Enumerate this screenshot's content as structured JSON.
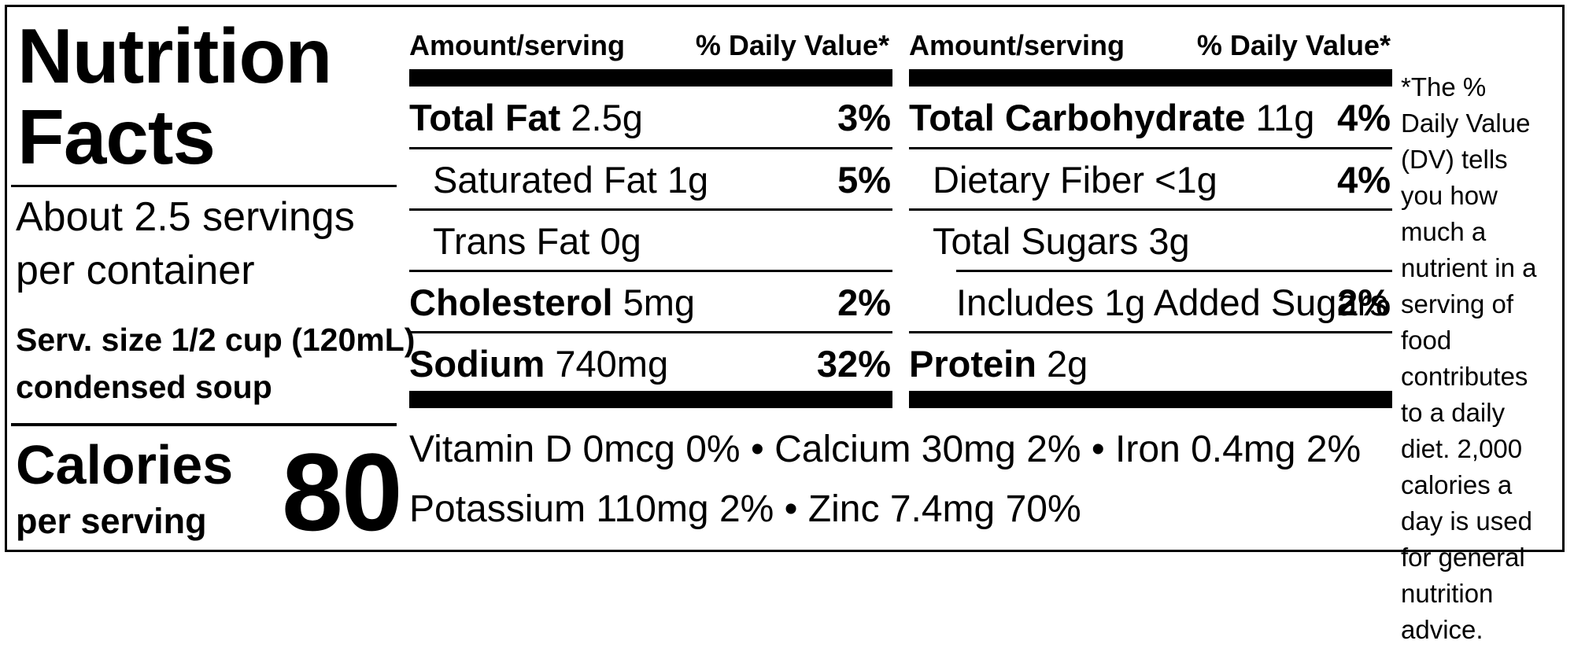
{
  "label": {
    "title_line1": "Nutrition",
    "title_line2": "Facts",
    "servings_line1": "About 2.5 servings",
    "servings_line2": "per container",
    "serving_size_line1": "Serv. size 1/2 cup (120mL)",
    "serving_size_line2": "condensed soup",
    "calories_label": "Calories",
    "calories_sub": "per serving",
    "calories_value": "80"
  },
  "headers": {
    "amount": "Amount/serving",
    "daily_value": "% Daily Value*"
  },
  "left_rows": [
    {
      "name": "Total Fat",
      "amount": "2.5g",
      "dv": "3%"
    },
    {
      "name": "Saturated Fat",
      "amount": "1g",
      "dv": "5%"
    },
    {
      "name": "Trans Fat",
      "amount": "0g",
      "dv": ""
    },
    {
      "name": "Cholesterol",
      "amount": "5mg",
      "dv": "2%"
    },
    {
      "name": "Sodium",
      "amount": "740mg",
      "dv": "32%"
    }
  ],
  "right_rows": [
    {
      "name": "Total Carbohydrate",
      "amount": "11g",
      "dv": "4%"
    },
    {
      "name": "Dietary Fiber",
      "amount": "<1g",
      "dv": "4%"
    },
    {
      "name": "Total Sugars",
      "amount": "3g",
      "dv": ""
    },
    {
      "name": "Includes 1g Added Sugars",
      "amount": "",
      "dv": "2%"
    },
    {
      "name": "Protein",
      "amount": "2g",
      "dv": ""
    }
  ],
  "vitamins": {
    "line1": "Vitamin D 0mcg 0% • Calcium 30mg 2% • Iron 0.4mg 2%",
    "line2": "Potassium 110mg 2% • Zinc 7.4mg 70%"
  },
  "footnote": "*The % Daily Value (DV) tells you how much a nutrient in a serving of food contributes to a daily diet. 2,000 calories a day is used for general nutrition advice."
}
